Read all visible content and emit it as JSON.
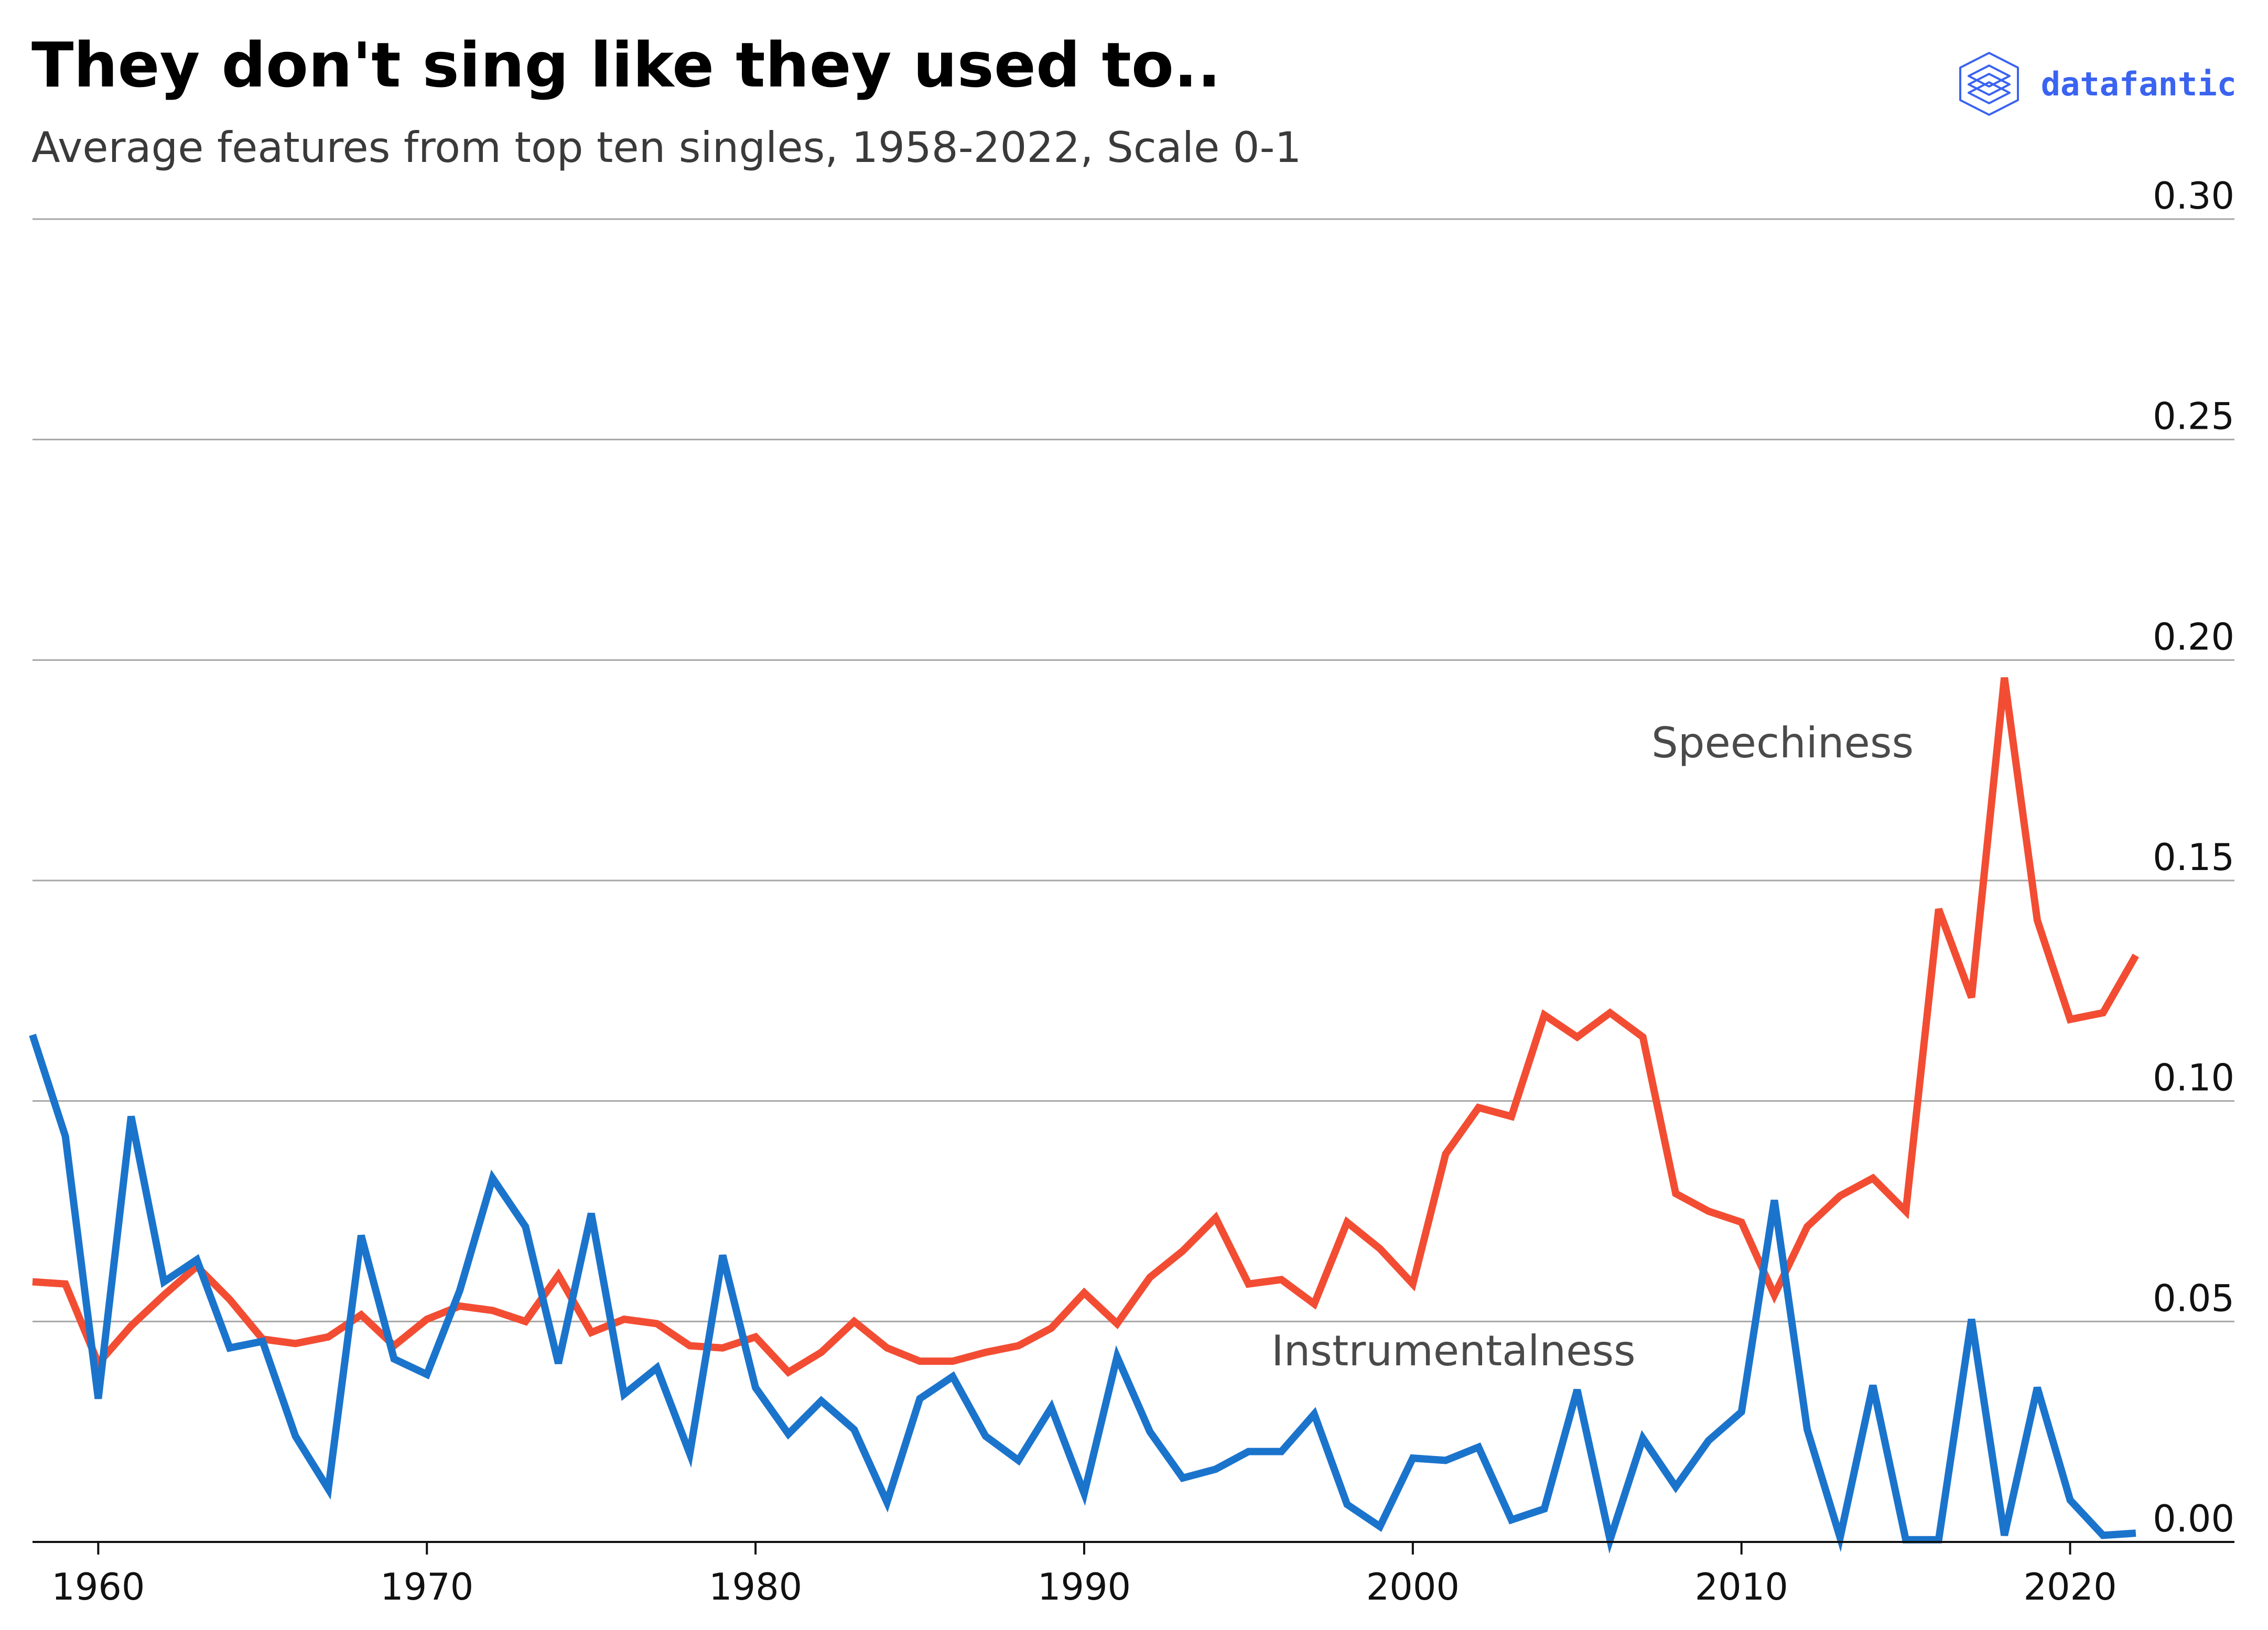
{
  "header": {
    "title": "They don't sing like they used to..",
    "subtitle": "Average features from top ten singles, 1958-2022, Scale 0-1"
  },
  "brand": {
    "name": "datafantic",
    "logo_icon": "layered-diamond-icon",
    "color": "#3a63f0"
  },
  "chart_data": {
    "type": "line",
    "title": "They don't sing like they used to..",
    "subtitle": "Average features from top ten singles, 1958-2022, Scale 0-1",
    "xlabel": "",
    "ylabel": "",
    "xlim": [
      1958,
      2025
    ],
    "ylim": [
      0,
      0.3
    ],
    "x_ticks": [
      1960,
      1970,
      1980,
      1990,
      2000,
      2010,
      2020
    ],
    "y_ticks": [
      0.0,
      0.05,
      0.1,
      0.15,
      0.2,
      0.25,
      0.3
    ],
    "y_tick_labels": [
      "0.00",
      "0.05",
      "0.10",
      "0.15",
      "0.20",
      "0.25",
      "0.30"
    ],
    "y_axis_side": "right",
    "grid": "horizontal",
    "legend": "none",
    "x": [
      1958,
      1959,
      1960,
      1961,
      1962,
      1963,
      1964,
      1965,
      1966,
      1967,
      1968,
      1969,
      1970,
      1971,
      1972,
      1973,
      1974,
      1975,
      1976,
      1977,
      1978,
      1979,
      1980,
      1981,
      1982,
      1983,
      1984,
      1985,
      1986,
      1987,
      1988,
      1989,
      1990,
      1991,
      1992,
      1993,
      1994,
      1995,
      1996,
      1997,
      1998,
      1999,
      2000,
      2001,
      2002,
      2003,
      2004,
      2005,
      2006,
      2007,
      2008,
      2009,
      2010,
      2011,
      2012,
      2013,
      2014,
      2015,
      2016,
      2017,
      2018,
      2019,
      2020,
      2021,
      2022
    ],
    "series": [
      {
        "name": "Speechiness",
        "color": "#f24d33",
        "values": [
          0.059,
          0.0585,
          0.0405,
          0.049,
          0.056,
          0.0625,
          0.055,
          0.046,
          0.045,
          0.0465,
          0.0515,
          0.0445,
          0.0505,
          0.0535,
          0.0525,
          0.05,
          0.0605,
          0.0475,
          0.0505,
          0.0495,
          0.0445,
          0.044,
          0.0465,
          0.0385,
          0.043,
          0.05,
          0.044,
          0.041,
          0.041,
          0.043,
          0.0445,
          0.0485,
          0.0565,
          0.0495,
          0.06,
          0.066,
          0.0735,
          0.0585,
          0.0595,
          0.054,
          0.0725,
          0.0665,
          0.0585,
          0.088,
          0.0985,
          0.0965,
          0.1195,
          0.1145,
          0.12,
          0.1145,
          0.079,
          0.075,
          0.0725,
          0.056,
          0.0715,
          0.0785,
          0.0825,
          0.075,
          0.1435,
          0.1235,
          0.196,
          0.141,
          0.1185,
          0.12,
          0.133
        ]
      },
      {
        "name": "Instrumentalness",
        "color": "#1b74cc",
        "values": [
          0.115,
          0.092,
          0.0325,
          0.0965,
          0.059,
          0.064,
          0.044,
          0.0455,
          0.024,
          0.012,
          0.0695,
          0.0415,
          0.038,
          0.057,
          0.0825,
          0.0715,
          0.0405,
          0.0745,
          0.0335,
          0.0395,
          0.02,
          0.065,
          0.035,
          0.0245,
          0.032,
          0.0255,
          0.009,
          0.0325,
          0.0375,
          0.024,
          0.0185,
          0.0305,
          0.011,
          0.042,
          0.025,
          0.0145,
          0.0165,
          0.0205,
          0.0205,
          0.029,
          0.0085,
          0.0035,
          0.019,
          0.0185,
          0.0215,
          0.005,
          0.0075,
          0.0345,
          0.0005,
          0.0235,
          0.0125,
          0.023,
          0.0295,
          0.0775,
          0.0255,
          0.001,
          0.0355,
          0.0005,
          0.0005,
          0.0505,
          0.0015,
          0.035,
          0.0095,
          0.0015,
          0.002
        ]
      }
    ]
  }
}
